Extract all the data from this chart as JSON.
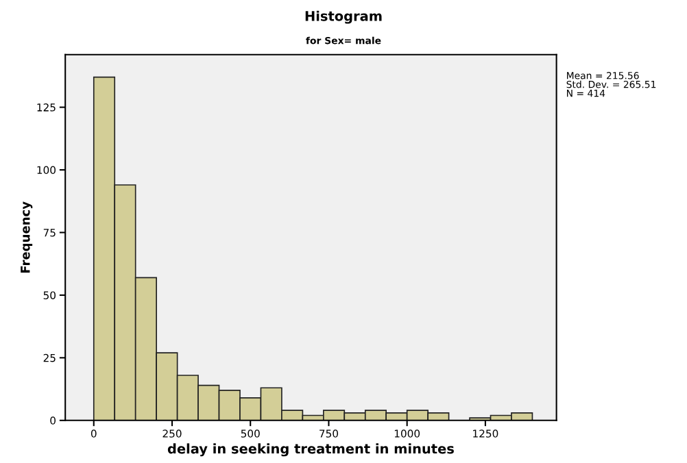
{
  "chart_data": {
    "type": "histogram",
    "title": "Histogram",
    "subtitle": "for Sex= male",
    "xlabel": "delay in seeking treatment in minutes",
    "ylabel": "Frequency",
    "annotations": [
      "Mean = 215.56\nStd. Dev. = 265.51\nN = 414"
    ],
    "bins": [
      0,
      66.7,
      133.3,
      200,
      266.7,
      333.3,
      400,
      466.7,
      533.3,
      600,
      666.7,
      733.3,
      800,
      866.7,
      933.3,
      1000,
      1066.7,
      1133.3,
      1200,
      1266.7,
      1333.3,
      1400
    ],
    "values": [
      137,
      94,
      57,
      27,
      18,
      14,
      12,
      9,
      13,
      4,
      2,
      4,
      3,
      4,
      3,
      4,
      3,
      0,
      1,
      2,
      3
    ],
    "color": "#d3ce97",
    "xlim": [
      -91,
      1477
    ],
    "xticks": [
      0,
      250,
      500,
      750,
      1000,
      1250
    ],
    "ylim": [
      0,
      146
    ],
    "yticks": [
      0,
      25,
      50,
      75,
      100,
      125
    ],
    "grid": false
  }
}
